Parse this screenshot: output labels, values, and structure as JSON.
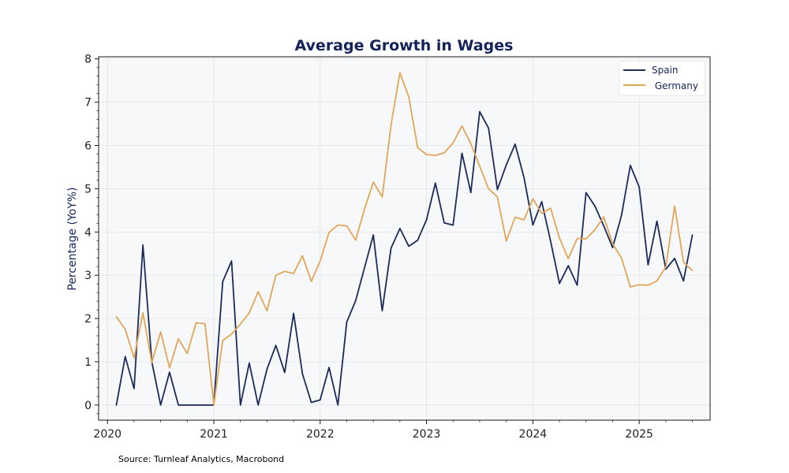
{
  "chart_data": {
    "type": "line",
    "title": "Average Growth in Wages",
    "xlabel": "",
    "ylabel": "Percentage (YoY%)",
    "x_ticks": [
      "2020",
      "2021",
      "2022",
      "2023",
      "2024",
      "2025"
    ],
    "y_ticks": [
      "0",
      "1",
      "2",
      "3",
      "4",
      "5",
      "6",
      "7",
      "8"
    ],
    "xlim": [
      "2019-12-01",
      "2025-09-01"
    ],
    "ylim": [
      -0.35,
      8.05
    ],
    "grid": true,
    "legend_position": "top-right",
    "x": [
      "2020-02",
      "2020-03",
      "2020-04",
      "2020-05",
      "2020-06",
      "2020-07",
      "2020-08",
      "2020-09",
      "2020-10",
      "2020-11",
      "2020-12",
      "2021-01",
      "2021-02",
      "2021-03",
      "2021-04",
      "2021-05",
      "2021-06",
      "2021-07",
      "2021-08",
      "2021-09",
      "2021-10",
      "2021-11",
      "2021-12",
      "2022-01",
      "2022-02",
      "2022-03",
      "2022-04",
      "2022-05",
      "2022-06",
      "2022-07",
      "2022-08",
      "2022-09",
      "2022-10",
      "2022-11",
      "2022-12",
      "2023-01",
      "2023-02",
      "2023-03",
      "2023-04",
      "2023-05",
      "2023-06",
      "2023-07",
      "2023-08",
      "2023-09",
      "2023-10",
      "2023-11",
      "2023-12",
      "2024-01",
      "2024-02",
      "2024-03",
      "2024-04",
      "2024-05",
      "2024-06",
      "2024-07",
      "2024-08",
      "2024-09",
      "2024-10",
      "2024-11",
      "2024-12",
      "2025-01",
      "2025-02",
      "2025-03",
      "2025-04",
      "2025-05",
      "2025-06",
      "2025-07"
    ],
    "series": [
      {
        "name": "Spain",
        "color": "#1c2b5a",
        "values": [
          0.0,
          1.12,
          0.38,
          3.7,
          1.0,
          0.0,
          0.76,
          0.0,
          0.0,
          0.0,
          0.0,
          0.0,
          2.85,
          3.33,
          0.0,
          0.97,
          0.0,
          0.83,
          1.38,
          0.75,
          2.12,
          0.72,
          0.06,
          0.12,
          0.87,
          0.0,
          1.92,
          2.41,
          3.17,
          3.93,
          2.18,
          3.63,
          4.08,
          3.67,
          3.81,
          4.28,
          5.13,
          4.21,
          4.16,
          5.82,
          4.91,
          6.78,
          6.4,
          4.98,
          5.55,
          6.03,
          5.26,
          4.16,
          4.7,
          3.79,
          2.81,
          3.22,
          2.77,
          4.91,
          4.6,
          4.14,
          3.64,
          4.38,
          5.54,
          5.04,
          3.24,
          4.25,
          3.14,
          3.39,
          2.87,
          3.93
        ]
      },
      {
        "name": " Germany",
        "color": "#e0a65a",
        "values": [
          2.04,
          1.75,
          1.09,
          2.13,
          0.98,
          1.69,
          0.86,
          1.53,
          1.19,
          1.9,
          1.88,
          0.0,
          1.49,
          1.64,
          1.87,
          2.13,
          2.62,
          2.18,
          3.0,
          3.09,
          3.04,
          3.45,
          2.86,
          3.33,
          3.99,
          4.16,
          4.14,
          3.81,
          4.53,
          5.15,
          4.81,
          6.48,
          7.68,
          7.12,
          5.95,
          5.79,
          5.77,
          5.83,
          6.06,
          6.45,
          6.04,
          5.52,
          5.0,
          4.81,
          3.79,
          4.34,
          4.28,
          4.77,
          4.43,
          4.55,
          3.86,
          3.38,
          3.85,
          3.84,
          4.05,
          4.35,
          3.73,
          3.4,
          2.73,
          2.78,
          2.77,
          2.87,
          3.19,
          4.6,
          3.3,
          3.11
        ]
      }
    ]
  },
  "source_note": "Source: Turnleaf Analytics, Macrobond"
}
